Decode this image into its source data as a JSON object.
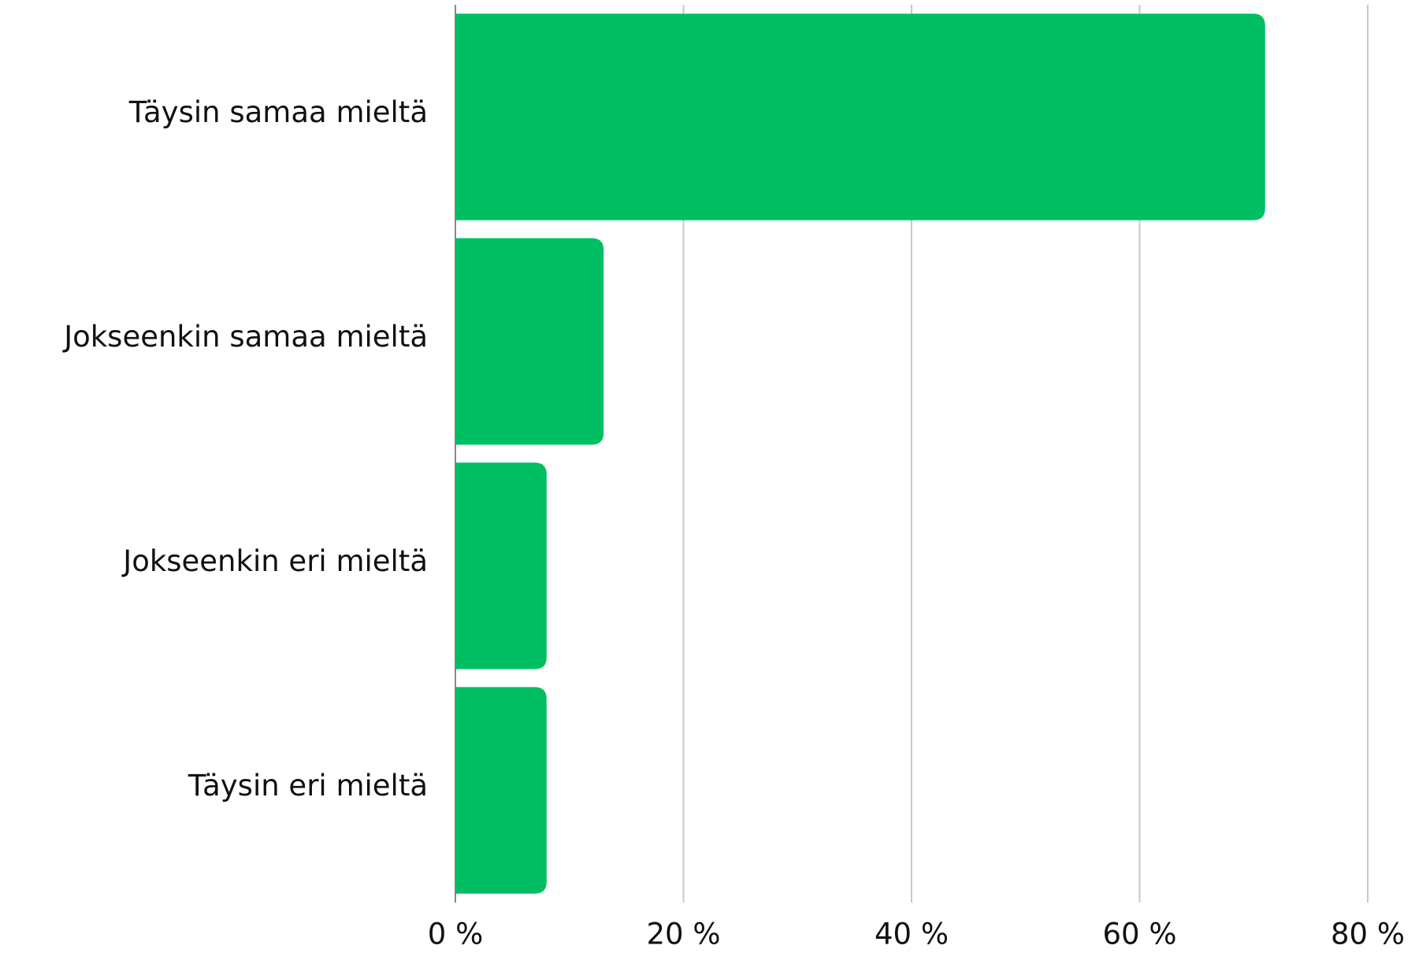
{
  "chart_data": {
    "type": "hbar",
    "categories": [
      "Täysin samaa mieltä",
      "Jokseenkin samaa mieltä",
      "Jokseenkin eri mieltä",
      "Täysin eri mieltä"
    ],
    "values": [
      71,
      13,
      8,
      8
    ],
    "color": "#00bf63",
    "xlim": [
      0,
      80
    ],
    "xticks": [
      {
        "value": 0,
        "label": "0 %"
      },
      {
        "value": 20,
        "label": "20 %"
      },
      {
        "value": 40,
        "label": "40 %"
      },
      {
        "value": 60,
        "label": "60 %"
      },
      {
        "value": 80,
        "label": "80 %"
      }
    ],
    "grid": true
  }
}
